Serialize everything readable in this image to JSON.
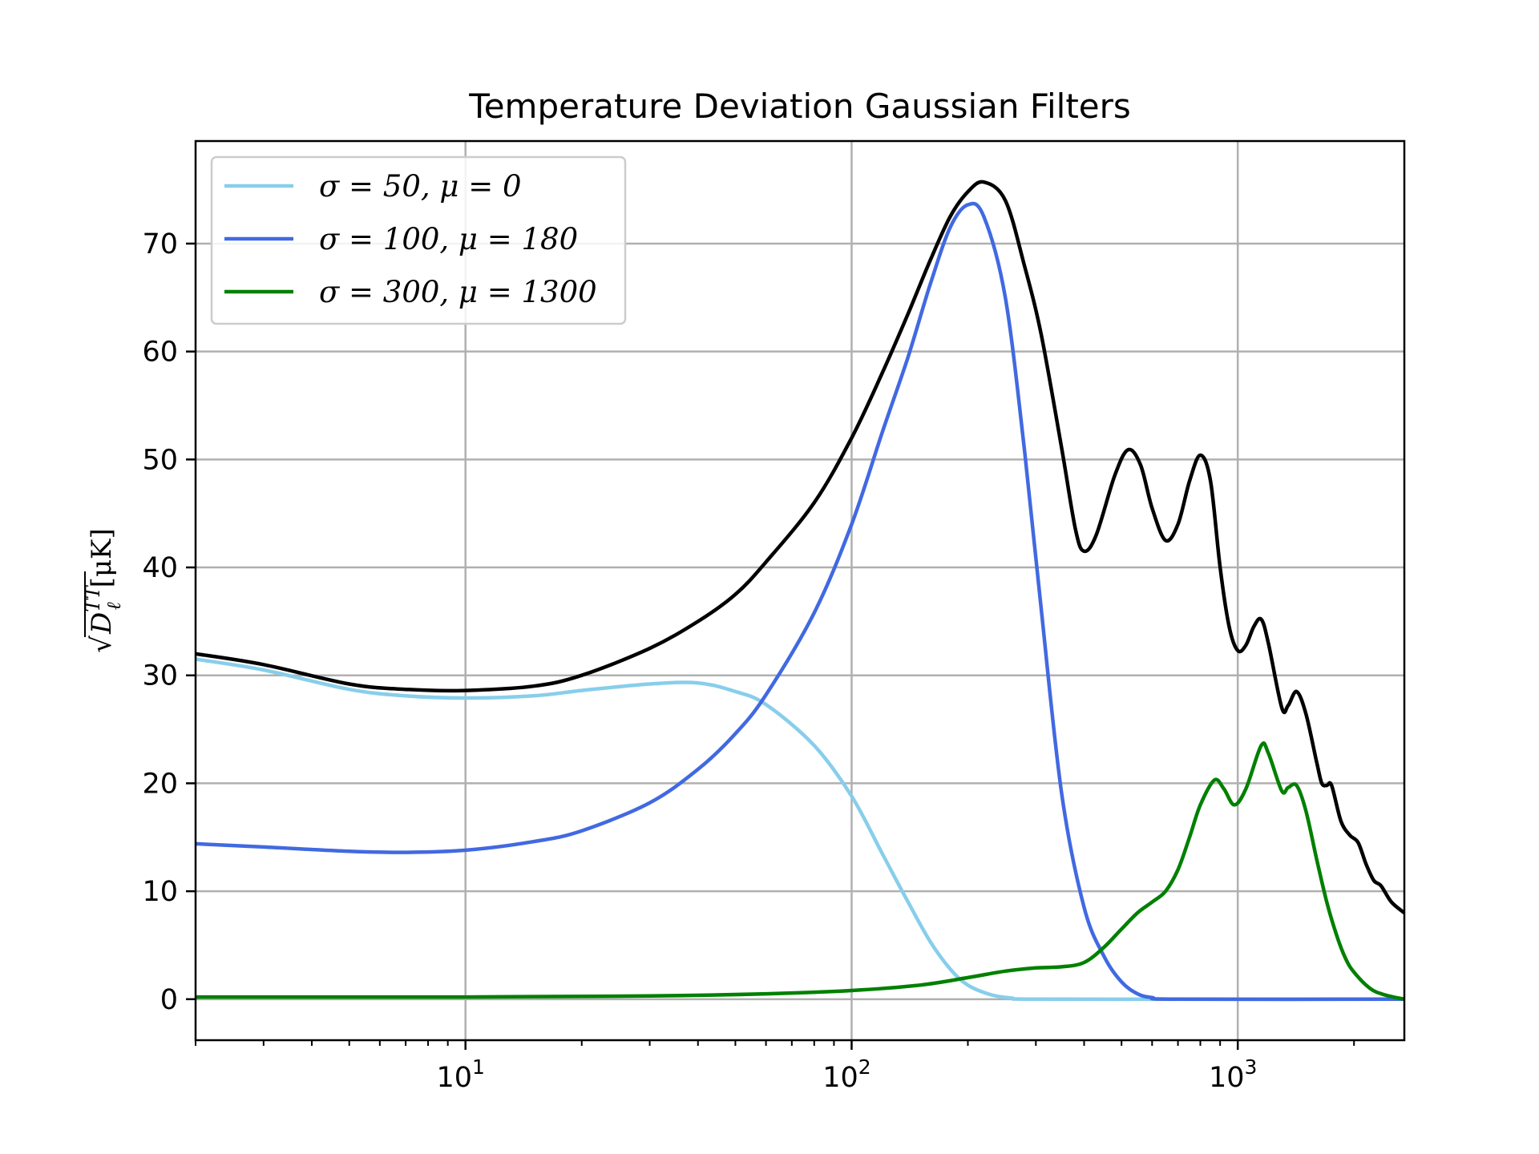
{
  "chart_data": {
    "type": "line",
    "title": "Temperature Deviation Gaussian Filters",
    "xlabel": "",
    "ylabel": "√D_ℓ^TT [μK]",
    "xscale": "log",
    "xlim": [
      2,
      2700
    ],
    "ylim": [
      -3.8,
      79.5
    ],
    "grid": true,
    "legend_position": "top-left",
    "x_ticks": [
      {
        "value": 10,
        "label": "10"
      },
      {
        "value": 100,
        "label": "10"
      },
      {
        "value": 1000,
        "label": "10"
      }
    ],
    "x_tick_exponents": [
      "1",
      "2",
      "3"
    ],
    "y_ticks": [
      0,
      10,
      20,
      30,
      40,
      50,
      60,
      70
    ],
    "series": [
      {
        "name": "σ = 50, μ = 0",
        "color": "#87ceeb",
        "points": [
          [
            2,
            31.5
          ],
          [
            3,
            30.5
          ],
          [
            5,
            28.7
          ],
          [
            7,
            28.1
          ],
          [
            10,
            27.9
          ],
          [
            15,
            28.1
          ],
          [
            20,
            28.6
          ],
          [
            30,
            29.2
          ],
          [
            40,
            29.3
          ],
          [
            50,
            28.5
          ],
          [
            60,
            27.3
          ],
          [
            80,
            23.5
          ],
          [
            100,
            18.8
          ],
          [
            120,
            13.5
          ],
          [
            140,
            9.0
          ],
          [
            160,
            5.3
          ],
          [
            180,
            2.8
          ],
          [
            200,
            1.3
          ],
          [
            230,
            0.4
          ],
          [
            260,
            0.1
          ],
          [
            300,
            0.0
          ],
          [
            1000,
            0.0
          ],
          [
            2700,
            0.0
          ]
        ]
      },
      {
        "name": "σ = 100, μ = 180",
        "color": "#4169e1",
        "points": [
          [
            2,
            14.4
          ],
          [
            3,
            14.1
          ],
          [
            5,
            13.7
          ],
          [
            7,
            13.6
          ],
          [
            10,
            13.8
          ],
          [
            15,
            14.6
          ],
          [
            20,
            15.6
          ],
          [
            30,
            18.2
          ],
          [
            40,
            21.3
          ],
          [
            50,
            24.6
          ],
          [
            60,
            28.2
          ],
          [
            80,
            35.8
          ],
          [
            100,
            44.0
          ],
          [
            120,
            52.5
          ],
          [
            140,
            59.5
          ],
          [
            160,
            66.3
          ],
          [
            180,
            71.5
          ],
          [
            200,
            73.6
          ],
          [
            220,
            72.5
          ],
          [
            250,
            65.0
          ],
          [
            280,
            51.0
          ],
          [
            310,
            36.0
          ],
          [
            350,
            19.0
          ],
          [
            400,
            8.5
          ],
          [
            450,
            4.0
          ],
          [
            500,
            1.6
          ],
          [
            550,
            0.5
          ],
          [
            600,
            0.15
          ],
          [
            700,
            0.0
          ],
          [
            2700,
            0.0
          ]
        ]
      },
      {
        "name": "σ = 300, μ = 1300",
        "color": "#008000",
        "points": [
          [
            2,
            0.2
          ],
          [
            10,
            0.2
          ],
          [
            30,
            0.3
          ],
          [
            60,
            0.5
          ],
          [
            100,
            0.8
          ],
          [
            150,
            1.3
          ],
          [
            200,
            2.0
          ],
          [
            250,
            2.6
          ],
          [
            300,
            2.9
          ],
          [
            350,
            3.0
          ],
          [
            400,
            3.4
          ],
          [
            450,
            4.8
          ],
          [
            500,
            6.5
          ],
          [
            550,
            8.0
          ],
          [
            600,
            9.0
          ],
          [
            650,
            10.0
          ],
          [
            700,
            12.0
          ],
          [
            750,
            15.0
          ],
          [
            800,
            18.0
          ],
          [
            870,
            20.3
          ],
          [
            920,
            19.5
          ],
          [
            980,
            18.0
          ],
          [
            1050,
            19.5
          ],
          [
            1150,
            23.5
          ],
          [
            1200,
            22.8
          ],
          [
            1300,
            19.3
          ],
          [
            1350,
            19.6
          ],
          [
            1420,
            19.8
          ],
          [
            1500,
            17.5
          ],
          [
            1600,
            13.0
          ],
          [
            1700,
            9.0
          ],
          [
            1800,
            6.0
          ],
          [
            1900,
            3.8
          ],
          [
            2000,
            2.5
          ],
          [
            2200,
            1.0
          ],
          [
            2400,
            0.4
          ],
          [
            2700,
            0.0
          ]
        ]
      },
      {
        "name": "",
        "color": "#000000",
        "points": [
          [
            2,
            32.0
          ],
          [
            3,
            31.0
          ],
          [
            5,
            29.2
          ],
          [
            7,
            28.7
          ],
          [
            10,
            28.6
          ],
          [
            15,
            29.0
          ],
          [
            20,
            30.0
          ],
          [
            30,
            32.5
          ],
          [
            40,
            35.0
          ],
          [
            50,
            37.5
          ],
          [
            60,
            40.5
          ],
          [
            80,
            46.0
          ],
          [
            100,
            52.0
          ],
          [
            120,
            58.0
          ],
          [
            140,
            63.5
          ],
          [
            160,
            68.5
          ],
          [
            180,
            72.5
          ],
          [
            200,
            74.8
          ],
          [
            220,
            75.7
          ],
          [
            250,
            74.0
          ],
          [
            280,
            68.0
          ],
          [
            310,
            61.5
          ],
          [
            350,
            51.0
          ],
          [
            380,
            43.5
          ],
          [
            400,
            41.5
          ],
          [
            430,
            43.0
          ],
          [
            480,
            48.5
          ],
          [
            520,
            50.9
          ],
          [
            560,
            49.5
          ],
          [
            600,
            45.5
          ],
          [
            650,
            42.5
          ],
          [
            700,
            44.0
          ],
          [
            750,
            48.0
          ],
          [
            800,
            50.4
          ],
          [
            850,
            48.0
          ],
          [
            900,
            40.0
          ],
          [
            950,
            34.5
          ],
          [
            1000,
            32.3
          ],
          [
            1050,
            32.8
          ],
          [
            1100,
            34.5
          ],
          [
            1150,
            35.2
          ],
          [
            1200,
            33.0
          ],
          [
            1300,
            27.0
          ],
          [
            1350,
            27.2
          ],
          [
            1420,
            28.5
          ],
          [
            1500,
            26.5
          ],
          [
            1600,
            22.0
          ],
          [
            1650,
            20.0
          ],
          [
            1700,
            19.8
          ],
          [
            1750,
            19.8
          ],
          [
            1850,
            16.5
          ],
          [
            1950,
            15.2
          ],
          [
            2050,
            14.5
          ],
          [
            2150,
            12.5
          ],
          [
            2250,
            11.0
          ],
          [
            2350,
            10.5
          ],
          [
            2500,
            9.0
          ],
          [
            2700,
            8.0
          ]
        ]
      }
    ]
  }
}
